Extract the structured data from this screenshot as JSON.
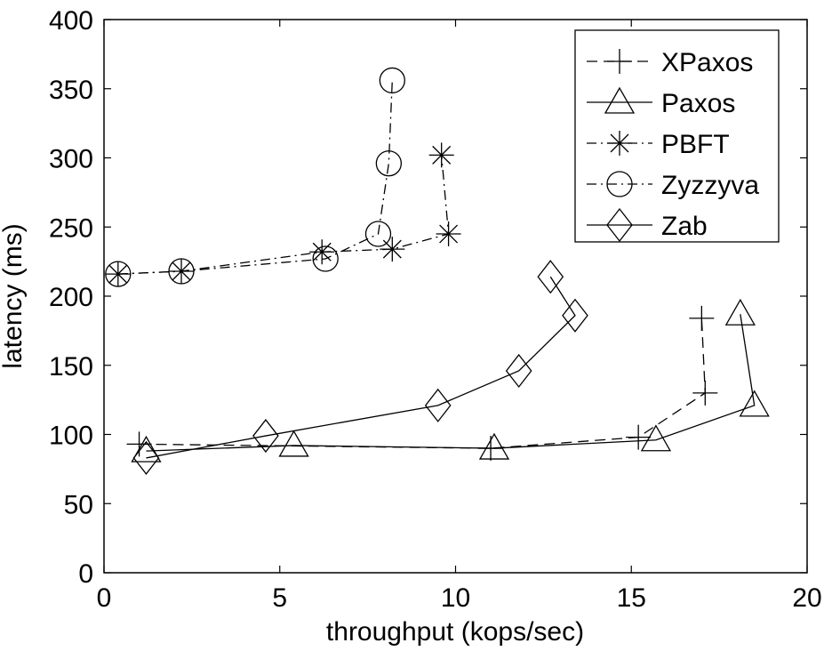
{
  "chart_data": {
    "type": "line",
    "title": "",
    "xlabel": "throughput (kops/sec)",
    "ylabel": "latency (ms)",
    "xlim": [
      0,
      20
    ],
    "ylim": [
      0,
      400
    ],
    "xticks": [
      0,
      5,
      10,
      15,
      20
    ],
    "yticks": [
      0,
      50,
      100,
      150,
      200,
      250,
      300,
      350,
      400
    ],
    "grid": false,
    "legend_position": "top-right",
    "series": [
      {
        "name": "XPaxos",
        "marker": "plus",
        "line_style": "dashed",
        "points": [
          [
            1.0,
            93
          ],
          [
            11.0,
            90
          ],
          [
            15.2,
            98
          ],
          [
            17.1,
            130
          ],
          [
            17.0,
            184
          ]
        ]
      },
      {
        "name": "Paxos",
        "marker": "triangle",
        "line_style": "solid",
        "points": [
          [
            1.2,
            88
          ],
          [
            5.4,
            92
          ],
          [
            11.1,
            90
          ],
          [
            15.7,
            96
          ],
          [
            18.5,
            121
          ],
          [
            18.1,
            187
          ]
        ]
      },
      {
        "name": "PBFT",
        "marker": "asterisk",
        "line_style": "dashdot",
        "points": [
          [
            0.4,
            216
          ],
          [
            2.2,
            218
          ],
          [
            6.2,
            232
          ],
          [
            8.2,
            234
          ],
          [
            9.8,
            245
          ],
          [
            9.6,
            302
          ]
        ]
      },
      {
        "name": "Zyzzyva",
        "marker": "circle",
        "line_style": "dashdot",
        "points": [
          [
            0.4,
            216
          ],
          [
            2.2,
            218
          ],
          [
            6.3,
            227
          ],
          [
            7.8,
            245
          ],
          [
            8.1,
            296
          ],
          [
            8.2,
            356
          ]
        ]
      },
      {
        "name": "Zab",
        "marker": "diamond",
        "line_style": "solid",
        "points": [
          [
            1.2,
            83
          ],
          [
            4.6,
            99
          ],
          [
            9.5,
            121
          ],
          [
            11.8,
            146
          ],
          [
            13.4,
            186
          ],
          [
            12.7,
            214
          ]
        ]
      }
    ]
  }
}
